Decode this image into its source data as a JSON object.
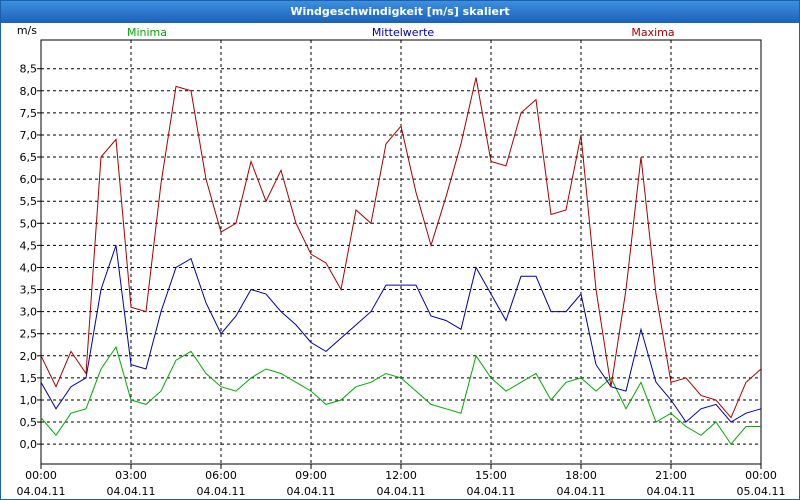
{
  "window": {
    "title": "Windgeschwindigkeit [m/s] skaliert"
  },
  "chart_data": {
    "type": "line",
    "title": "Windgeschwindigkeit [m/s] skaliert",
    "ylabel": "m/s",
    "ylim": [
      -0.45,
      9.15
    ],
    "xlim": [
      0,
      24
    ],
    "grid": true,
    "legend_placement": "top",
    "y_ticks": [
      "0,0",
      "0,5",
      "1,0",
      "1,5",
      "2,0",
      "2,5",
      "3,0",
      "3,5",
      "4,0",
      "4,5",
      "5,0",
      "5,5",
      "6,0",
      "6,5",
      "7,0",
      "7,5",
      "8,0",
      "8,5"
    ],
    "x_ticks": [
      {
        "time": "00:00",
        "date": "04.04.11"
      },
      {
        "time": "03:00",
        "date": "04.04.11"
      },
      {
        "time": "06:00",
        "date": "04.04.11"
      },
      {
        "time": "09:00",
        "date": "04.04.11"
      },
      {
        "time": "12:00",
        "date": "04.04.11"
      },
      {
        "time": "15:00",
        "date": "04.04.11"
      },
      {
        "time": "18:00",
        "date": "04.04.11"
      },
      {
        "time": "21:00",
        "date": "04.04.11"
      },
      {
        "time": "00:00",
        "date": "05.04.11"
      }
    ],
    "x_hours": [
      0,
      0.5,
      1,
      1.5,
      2,
      2.5,
      3,
      3.5,
      4,
      4.5,
      5,
      5.5,
      6,
      6.5,
      7,
      7.5,
      8,
      8.5,
      9,
      9.5,
      10,
      10.5,
      11,
      11.5,
      12,
      12.5,
      13,
      13.5,
      14,
      14.5,
      15,
      15.5,
      16,
      16.5,
      17,
      17.5,
      18,
      18.5,
      19,
      19.5,
      20,
      20.5,
      21,
      21.5,
      22,
      22.5,
      23,
      23.5,
      24
    ],
    "series": [
      {
        "name": "Minima",
        "color": "#00aa00",
        "values": [
          0.6,
          0.2,
          0.7,
          0.8,
          1.7,
          2.2,
          1.0,
          0.9,
          1.2,
          1.9,
          2.1,
          1.6,
          1.3,
          1.2,
          1.5,
          1.7,
          1.6,
          1.4,
          1.2,
          0.9,
          1.0,
          1.3,
          1.4,
          1.6,
          1.5,
          1.2,
          0.9,
          0.8,
          0.7,
          2.0,
          1.5,
          1.2,
          1.4,
          1.6,
          1.0,
          1.4,
          1.5,
          1.2,
          1.5,
          0.8,
          1.4,
          0.5,
          0.7,
          0.4,
          0.2,
          0.5,
          0.0,
          0.4,
          0.4
        ]
      },
      {
        "name": "Mittelwerte",
        "color": "#0000aa",
        "values": [
          1.4,
          0.8,
          1.3,
          1.5,
          3.5,
          4.5,
          1.8,
          1.7,
          3.0,
          4.0,
          4.2,
          3.2,
          2.5,
          2.9,
          3.5,
          3.4,
          3.0,
          2.7,
          2.3,
          2.1,
          2.4,
          2.7,
          3.0,
          3.6,
          3.6,
          3.6,
          2.9,
          2.8,
          2.6,
          4.0,
          3.4,
          2.8,
          3.8,
          3.8,
          3.0,
          3.0,
          3.4,
          1.8,
          1.3,
          1.2,
          2.6,
          1.4,
          1.0,
          0.5,
          0.8,
          0.9,
          0.5,
          0.7,
          0.8
        ]
      },
      {
        "name": "Maxima",
        "color": "#aa0000",
        "values": [
          2.0,
          1.3,
          2.1,
          1.6,
          6.5,
          6.9,
          3.1,
          3.0,
          5.9,
          8.1,
          8.0,
          6.0,
          4.8,
          5.0,
          6.4,
          5.5,
          6.2,
          5.0,
          4.3,
          4.1,
          3.5,
          5.3,
          5.0,
          6.8,
          7.2,
          5.7,
          4.5,
          5.6,
          6.8,
          8.3,
          6.4,
          6.3,
          7.5,
          7.8,
          5.2,
          5.3,
          7.0,
          3.5,
          1.3,
          3.5,
          6.5,
          3.4,
          1.4,
          1.5,
          1.1,
          1.0,
          0.6,
          1.4,
          1.7
        ]
      }
    ]
  }
}
